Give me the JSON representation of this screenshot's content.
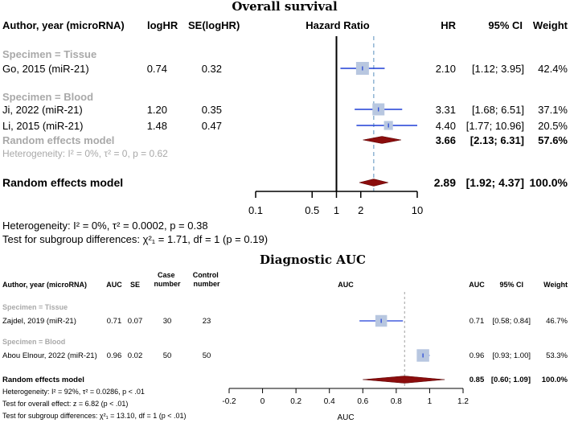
{
  "chart_data": [
    {
      "type": "forest",
      "title": "Overall survival",
      "headers": {
        "study": "Author, year (microRNA)",
        "loghr": "logHR",
        "se": "SE(logHR)",
        "axis": "Hazard Ratio",
        "hr": "HR",
        "ci": "95% CI",
        "weight": "Weight"
      },
      "x_scale": "log",
      "xlim": [
        0.1,
        10
      ],
      "ticks": [
        0.1,
        0.5,
        1,
        2,
        10
      ],
      "tick_labels": [
        "0.1",
        "0.5",
        "1",
        "2",
        "10"
      ],
      "reference_line": 1,
      "pooled_line": 2.89,
      "groups": [
        {
          "label": "Specimen = Tissue",
          "studies": [
            {
              "name": "Go, 2015 (miR-21)",
              "loghr": "0.74",
              "se": "0.32",
              "est": 2.1,
              "lo": 1.12,
              "hi": 3.95,
              "est_text": "2.10",
              "ci_text": "[1.12; 3.95]",
              "weight": 42.4,
              "weight_text": "42.4%"
            }
          ]
        },
        {
          "label": "Specimen = Blood",
          "studies": [
            {
              "name": "Ji, 2022 (miR-21)",
              "loghr": "1.20",
              "se": "0.35",
              "est": 3.31,
              "lo": 1.68,
              "hi": 6.51,
              "est_text": "3.31",
              "ci_text": "[1.68; 6.51]",
              "weight": 37.1,
              "weight_text": "37.1%"
            },
            {
              "name": "Li, 2015 (miR-21)",
              "loghr": "1.48",
              "se": "0.47",
              "est": 4.4,
              "lo": 1.77,
              "hi": 10.96,
              "est_text": "4.40",
              "ci_text": "[1.77; 10.96]",
              "weight": 20.5,
              "weight_text": "20.5%"
            }
          ],
          "subtotal": {
            "label": "Random effects model",
            "est": 3.66,
            "lo": 2.13,
            "hi": 6.31,
            "est_text": "3.66",
            "ci_text": "[2.13; 6.31]",
            "weight_text": "57.6%"
          },
          "heterogeneity": "Heterogeneity: I² = 0%, τ² = 0, p = 0.62"
        }
      ],
      "overall": {
        "label": "Random effects model",
        "est": 2.89,
        "lo": 1.92,
        "hi": 4.37,
        "est_text": "2.89",
        "ci_text": "[1.92; 4.37]",
        "weight_text": "100.0%"
      },
      "footnotes": [
        "Heterogeneity: I² = 0%, τ² = 0.0002, p = 0.38",
        "Test for subgroup differences: χ²₁ = 1.71, df = 1 (p = 0.19)"
      ]
    },
    {
      "type": "forest",
      "title": "Diagnostic AUC",
      "headers": {
        "study": "Author, year (microRNA)",
        "auc": "AUC",
        "se": "SE",
        "case": "Case number",
        "control": "Control number",
        "axis": "AUC",
        "auc_right": "AUC",
        "ci": "95% CI",
        "weight": "Weight"
      },
      "x_scale": "linear",
      "xlim": [
        -0.2,
        1.2
      ],
      "ticks": [
        -0.2,
        0,
        0.2,
        0.4,
        0.6,
        0.8,
        1,
        1.2
      ],
      "tick_labels": [
        "-0.2",
        "0",
        "0.2",
        "0.4",
        "0.6",
        "0.8",
        "1",
        "1.2"
      ],
      "xlabel": "AUC",
      "pooled_line": 0.85,
      "groups": [
        {
          "label": "Specimen = Tissue",
          "studies": [
            {
              "name": "Zajdel, 2019 (miR-21)",
              "auc": "0.71",
              "se": "0.07",
              "case": "30",
              "control": "23",
              "est": 0.71,
              "lo": 0.58,
              "hi": 0.84,
              "est_text": "0.71",
              "ci_text": "[0.58; 0.84]",
              "weight": 46.7,
              "weight_text": "46.7%"
            }
          ]
        },
        {
          "label": "Specimen = Blood",
          "studies": [
            {
              "name": "Abou Elnour, 2022 (miR-21)",
              "auc": "0.96",
              "se": "0.02",
              "case": "50",
              "control": "50",
              "est": 0.96,
              "lo": 0.93,
              "hi": 1.0,
              "est_text": "0.96",
              "ci_text": "[0.93; 1.00]",
              "weight": 53.3,
              "weight_text": "53.3%"
            }
          ]
        }
      ],
      "overall": {
        "label": "Random effects model",
        "est": 0.85,
        "lo": 0.6,
        "hi": 1.09,
        "est_text": "0.85",
        "ci_text": "[0.60; 1.09]",
        "weight_text": "100.0%"
      },
      "footnotes": [
        "Heterogeneity: I² = 92%, τ² = 0.0286, p < .01",
        "Test for overall effect: z = 6.82 (p < .01)",
        "Test for subgroup differences: χ²₁ = 13.10, df = 1 (p < .01)"
      ]
    }
  ]
}
